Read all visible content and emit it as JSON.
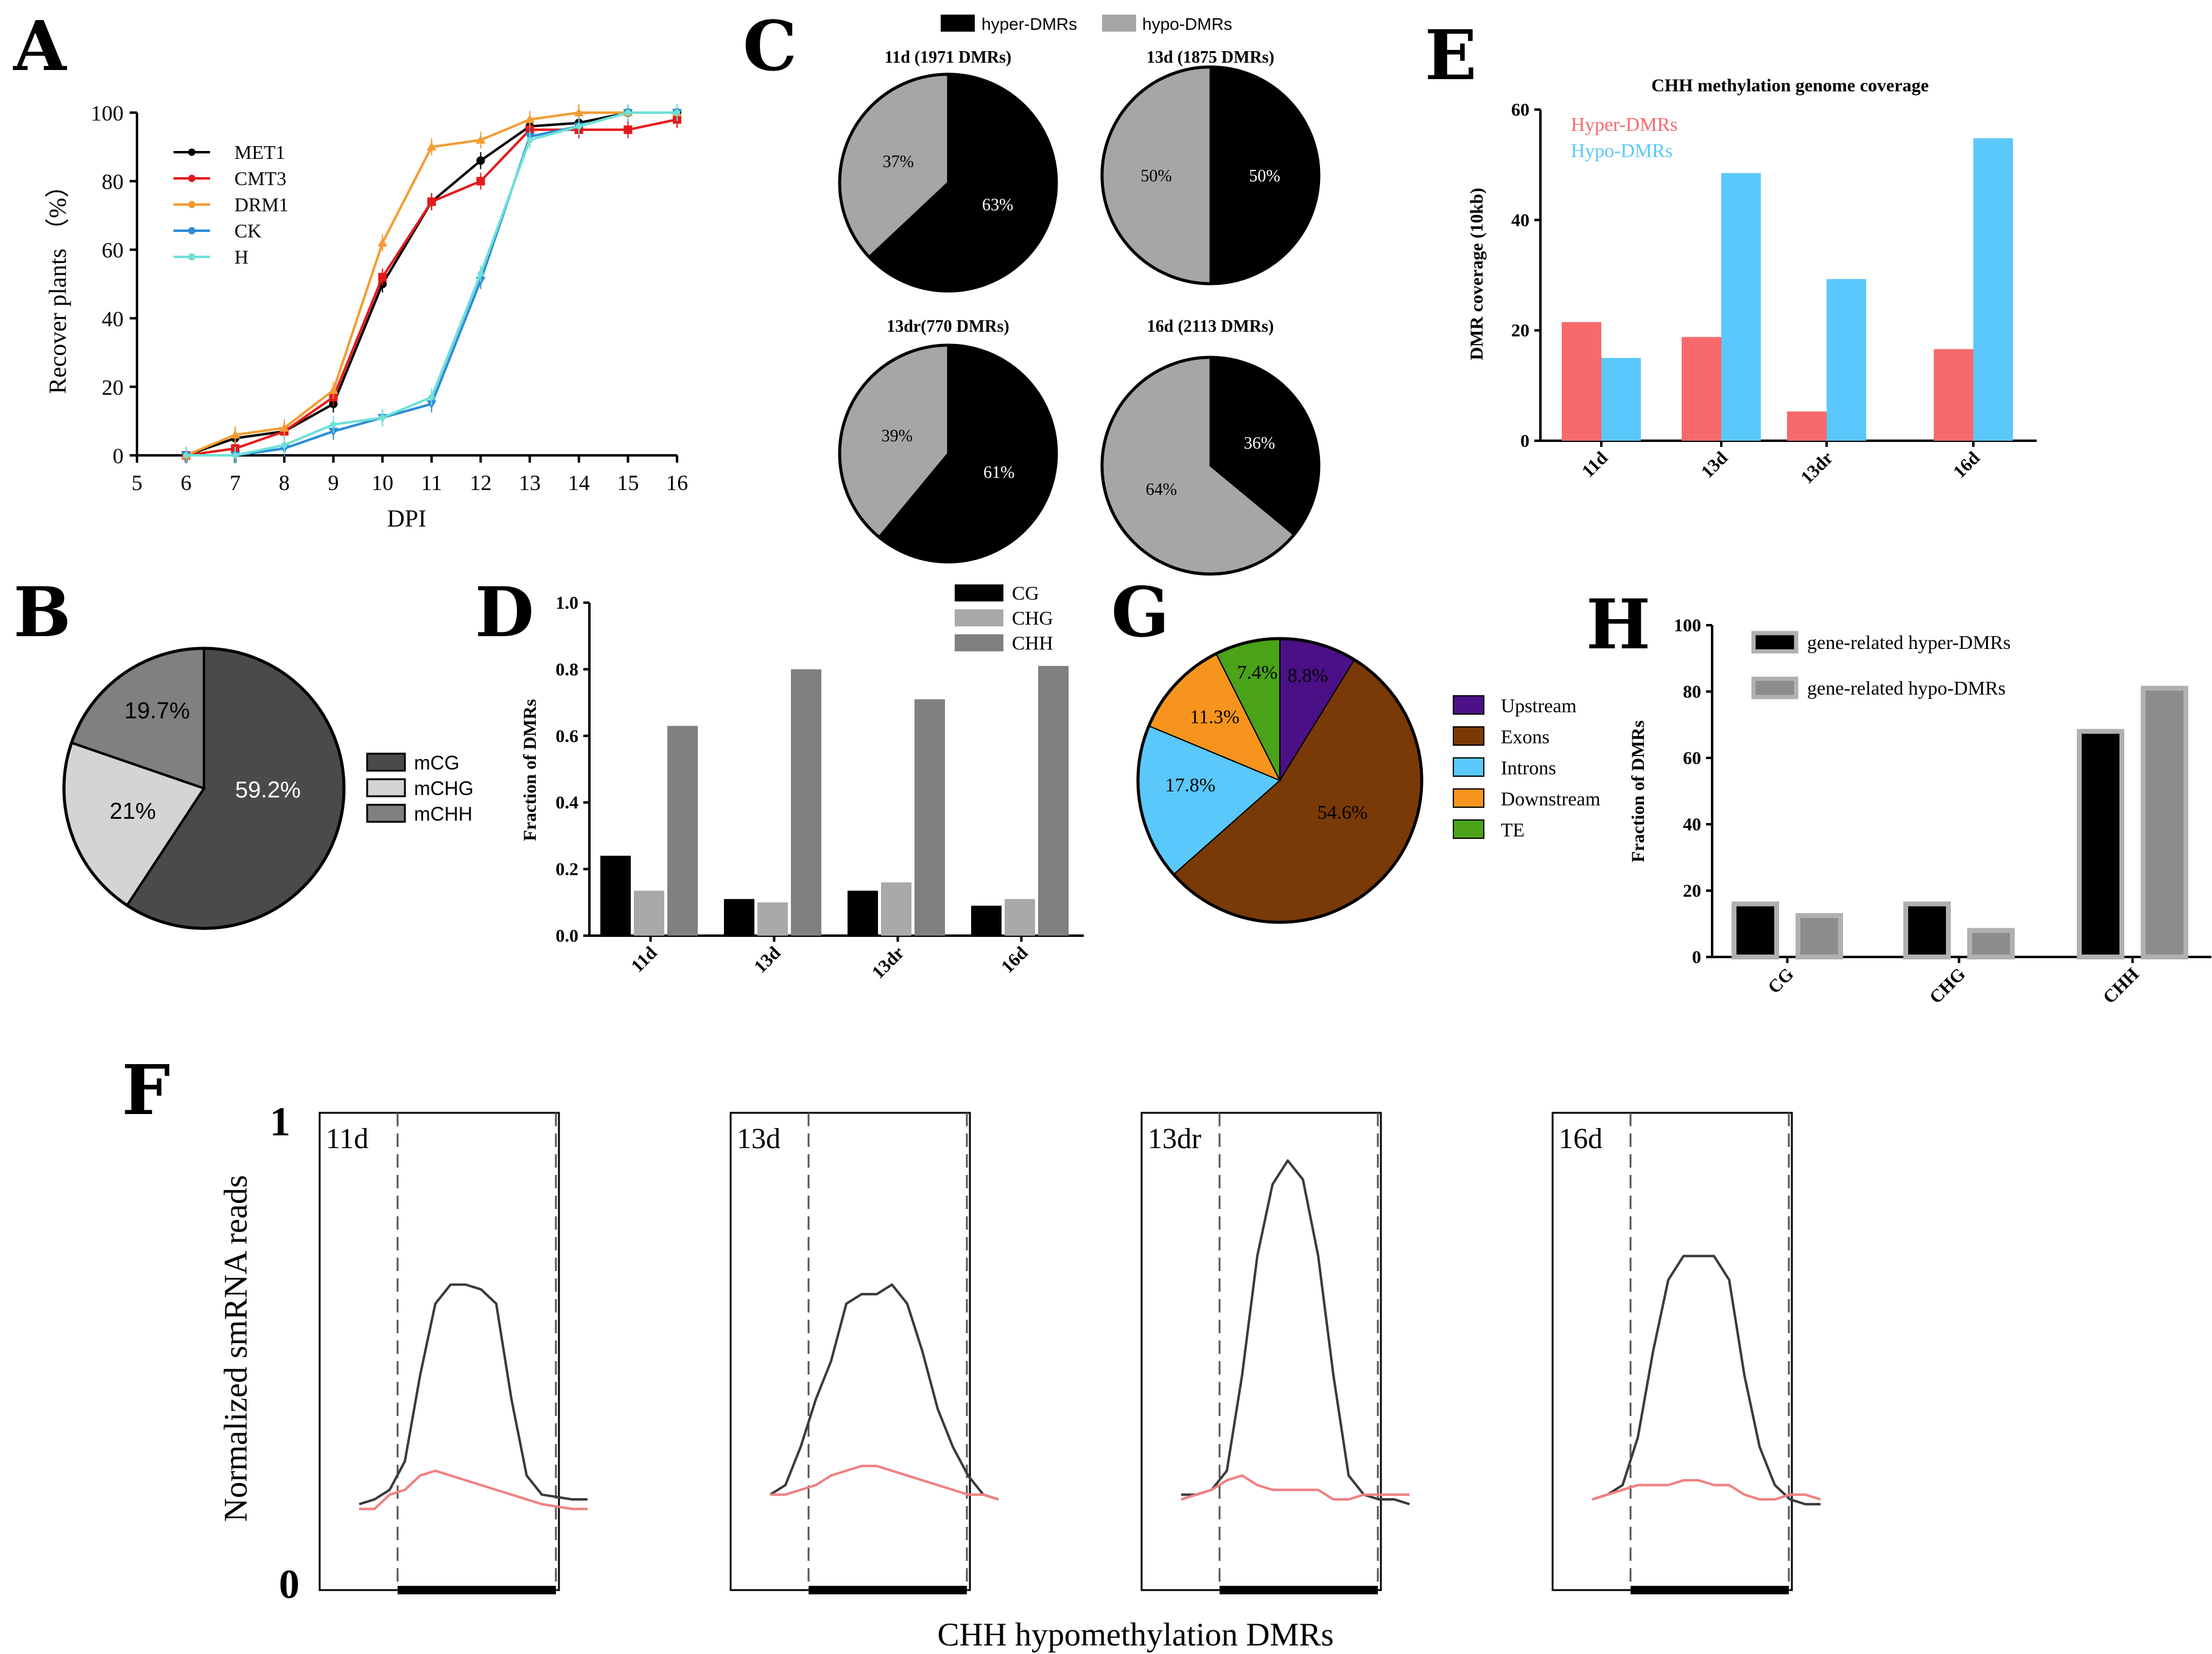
{
  "panel_letters": [
    "A",
    "B",
    "C",
    "D",
    "E",
    "F",
    "G",
    "H"
  ],
  "colors": {
    "met1": "#000000",
    "cmt3": "#e31a1c",
    "drm1": "#f39c33",
    "ck": "#2b8cd6",
    "h": "#6ee0d8",
    "mcg": "#4a4a4a",
    "mchg": "#d4d4d4",
    "mchh": "#808080",
    "hyper": "#000000",
    "hypo": "#a6a6a6",
    "cg": "#000000",
    "chg": "#a9a9a9",
    "chh": "#808080",
    "e_hyper": "#f8696b",
    "e_hypo": "#5ac8fa",
    "upstream": "#4b0f86",
    "exons": "#7a3a07",
    "introns": "#5ac8fa",
    "downstream": "#f7941d",
    "te": "#4aa319",
    "h_hyper": "#000000",
    "h_hypo": "#8c8c8c",
    "h_border": "#b0b0b0",
    "f_black": "#3a3a3a",
    "f_red": "#f08080"
  },
  "chart_data": [
    {
      "id": "A",
      "type": "line",
      "xlabel": "DPI",
      "ylabel": "Recover plants （%）",
      "xlim": [
        5,
        16
      ],
      "ylim": [
        0,
        100
      ],
      "xticks": [
        "5",
        "6",
        "7",
        "8",
        "9",
        "10",
        "11",
        "12",
        "13",
        "14",
        "15",
        "16"
      ],
      "yticks": [
        "0",
        "20",
        "40",
        "60",
        "80",
        "100"
      ],
      "x": [
        6,
        7,
        8,
        9,
        10,
        11,
        12,
        13,
        14,
        15,
        16
      ],
      "series": [
        {
          "name": "MET1",
          "color_key": "met1",
          "marker": "circle",
          "values": [
            0,
            5,
            7,
            15,
            50,
            74,
            86,
            96,
            97,
            100,
            100
          ]
        },
        {
          "name": "CMT3",
          "color_key": "cmt3",
          "marker": "square",
          "values": [
            0,
            2,
            7,
            17,
            52,
            74,
            80,
            95,
            95,
            95,
            98
          ]
        },
        {
          "name": "DRM1",
          "color_key": "drm1",
          "marker": "triangle",
          "values": [
            0,
            6,
            8,
            19,
            62,
            90,
            92,
            98,
            100,
            100,
            100
          ]
        },
        {
          "name": "CK",
          "color_key": "ck",
          "marker": "triangle-down",
          "values": [
            0,
            0,
            2,
            7,
            11,
            15,
            51,
            93,
            96,
            100,
            100
          ]
        },
        {
          "name": "H",
          "color_key": "h",
          "marker": "cross",
          "values": [
            0,
            0,
            3,
            9,
            11,
            17,
            53,
            92,
            96,
            100,
            100
          ]
        }
      ]
    },
    {
      "id": "B",
      "type": "pie",
      "labels": [
        "mCG",
        "mCHG",
        "mCHH"
      ],
      "values": [
        59.2,
        21.0,
        19.7
      ],
      "slice_labels": [
        "59.2%",
        "21%",
        "19.7%"
      ],
      "color_keys": [
        "mcg",
        "mchg",
        "mchh"
      ]
    },
    {
      "id": "C",
      "type": "pie",
      "legend": [
        "hyper-DMRs",
        "hypo-DMRs"
      ],
      "pies": [
        {
          "title": "11d (1971 DMRs)",
          "hyper": 63,
          "hypo": 37,
          "hyper_label": "63%",
          "hypo_label": "37%"
        },
        {
          "title": "13d (1875 DMRs)",
          "hyper": 50,
          "hypo": 50,
          "hyper_label": "50%",
          "hypo_label": "50%"
        },
        {
          "title": "13dr(770 DMRs)",
          "hyper": 61,
          "hypo": 39,
          "hyper_label": "61%",
          "hypo_label": "39%"
        },
        {
          "title": "16d (2113 DMRs)",
          "hyper": 36,
          "hypo": 64,
          "hyper_label": "36%",
          "hypo_label": "64%"
        }
      ]
    },
    {
      "id": "D",
      "type": "bar",
      "ylabel": "Fraction of DMRs",
      "ylim": [
        0,
        1.0
      ],
      "yticks": [
        "0.0",
        "0.2",
        "0.4",
        "0.6",
        "0.8",
        "1.0"
      ],
      "categories": [
        "11d",
        "13d",
        "13dr",
        "16d"
      ],
      "series": [
        {
          "name": "CG",
          "color_key": "cg",
          "values": [
            0.24,
            0.11,
            0.135,
            0.09
          ]
        },
        {
          "name": "CHG",
          "color_key": "chg",
          "values": [
            0.135,
            0.1,
            0.16,
            0.11
          ]
        },
        {
          "name": "CHH",
          "color_key": "chh",
          "values": [
            0.63,
            0.8,
            0.71,
            0.81
          ]
        }
      ]
    },
    {
      "id": "E",
      "type": "bar",
      "title": "CHH methylation genome coverage",
      "ylabel": "DMR coverage (10kb)",
      "ylim": [
        0,
        60
      ],
      "yticks": [
        "0",
        "20",
        "40",
        "60"
      ],
      "categories": [
        "11d",
        "13d",
        "13dr",
        "16d"
      ],
      "series": [
        {
          "name": "Hyper-DMRs",
          "color_key": "e_hyper",
          "values": [
            21.5,
            18.8,
            5.3,
            16.6
          ]
        },
        {
          "name": "Hypo-DMRs",
          "color_key": "e_hypo",
          "values": [
            15,
            48.5,
            29.3,
            54.8
          ]
        }
      ]
    },
    {
      "id": "G",
      "type": "pie",
      "labels": [
        "Upstream",
        "Exons",
        "Introns",
        "Downstream",
        "TE"
      ],
      "values": [
        8.8,
        54.6,
        17.8,
        11.3,
        7.4
      ],
      "slice_labels": [
        "8.8%",
        "54.6%",
        "17.8%",
        "11.3%",
        "7.4%"
      ],
      "color_keys": [
        "upstream",
        "exons",
        "introns",
        "downstream",
        "te"
      ]
    },
    {
      "id": "H",
      "type": "bar",
      "ylabel": "Fraction of DMRs",
      "ylim": [
        0,
        100
      ],
      "yticks": [
        "0",
        "20",
        "40",
        "60",
        "80",
        "100"
      ],
      "categories": [
        "CG",
        "CHG",
        "CHH"
      ],
      "series": [
        {
          "name": "gene-related hyper-DMRs",
          "color_key": "h_hyper",
          "values": [
            16,
            16,
            68
          ]
        },
        {
          "name": "gene-related hypo-DMRs",
          "color_key": "h_hypo",
          "values": [
            12.5,
            8,
            81
          ]
        }
      ]
    },
    {
      "id": "F",
      "type": "line",
      "xlabel": "CHH hypomethylation DMRs",
      "ylabel": "Normalized smRNA reads",
      "ylim": [
        0,
        1
      ],
      "ytick_top": "1",
      "ytick_bottom": "0",
      "panels": [
        {
          "label": "11d",
          "black": [
            0.18,
            0.19,
            0.21,
            0.27,
            0.45,
            0.6,
            0.64,
            0.64,
            0.63,
            0.6,
            0.4,
            0.24,
            0.2,
            0.195,
            0.19,
            0.19
          ],
          "red": [
            0.17,
            0.17,
            0.2,
            0.21,
            0.24,
            0.25,
            0.24,
            0.23,
            0.22,
            0.21,
            0.2,
            0.19,
            0.18,
            0.175,
            0.17,
            0.17
          ]
        },
        {
          "label": "13d",
          "black": [
            0.2,
            0.22,
            0.3,
            0.4,
            0.48,
            0.6,
            0.62,
            0.62,
            0.64,
            0.6,
            0.5,
            0.38,
            0.3,
            0.24,
            0.2,
            0.19
          ],
          "red": [
            0.2,
            0.2,
            0.21,
            0.22,
            0.24,
            0.25,
            0.26,
            0.26,
            0.25,
            0.24,
            0.23,
            0.22,
            0.21,
            0.2,
            0.2,
            0.19
          ]
        },
        {
          "label": "13dr",
          "black": [
            0.2,
            0.2,
            0.21,
            0.25,
            0.45,
            0.7,
            0.85,
            0.9,
            0.86,
            0.7,
            0.45,
            0.24,
            0.2,
            0.19,
            0.19,
            0.18
          ],
          "red": [
            0.19,
            0.2,
            0.21,
            0.23,
            0.24,
            0.22,
            0.21,
            0.21,
            0.21,
            0.21,
            0.19,
            0.19,
            0.2,
            0.2,
            0.2,
            0.2
          ]
        },
        {
          "label": "16d",
          "black": [
            0.19,
            0.2,
            0.22,
            0.32,
            0.5,
            0.65,
            0.7,
            0.7,
            0.7,
            0.65,
            0.45,
            0.3,
            0.22,
            0.19,
            0.18,
            0.18
          ],
          "red": [
            0.19,
            0.2,
            0.21,
            0.22,
            0.22,
            0.22,
            0.23,
            0.23,
            0.22,
            0.22,
            0.2,
            0.19,
            0.19,
            0.2,
            0.2,
            0.19
          ]
        }
      ]
    }
  ]
}
